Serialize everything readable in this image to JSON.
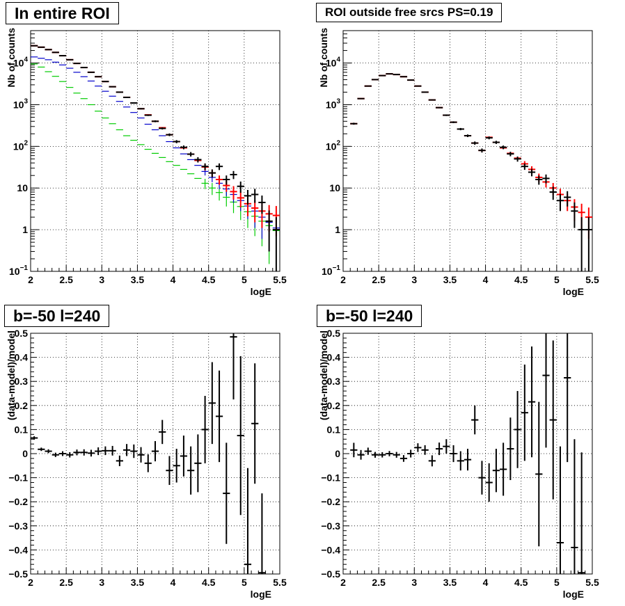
{
  "colors": {
    "data": "#000000",
    "total": "#ff0000",
    "component_a": "#0000cc",
    "component_b": "#00cc00",
    "grid": "#000000"
  },
  "chart_data": [
    {
      "type": "scatter",
      "title": "In entire ROI",
      "xlabel": "logE",
      "ylabel": "Nb of counts",
      "yscale": "log",
      "xlim": [
        2,
        5.5
      ],
      "ylim": [
        0.1,
        60000
      ],
      "xticks": [
        "2",
        "2.5",
        "3",
        "3.5",
        "4",
        "4.5",
        "5",
        "5.5"
      ],
      "yticks": [
        {
          "value": 0.1,
          "base": "10",
          "exp": "−1"
        },
        {
          "value": 1,
          "label": "1"
        },
        {
          "value": 10,
          "label": "10"
        },
        {
          "value": 100,
          "base": "10",
          "exp": "2"
        },
        {
          "value": 1000,
          "base": "10",
          "exp": "3"
        },
        {
          "value": 10000,
          "base": "10",
          "exp": "4"
        }
      ],
      "grid": true,
      "x": [
        2.05,
        2.15,
        2.25,
        2.35,
        2.45,
        2.55,
        2.65,
        2.75,
        2.85,
        2.95,
        3.05,
        3.15,
        3.25,
        3.35,
        3.45,
        3.55,
        3.65,
        3.75,
        3.85,
        3.95,
        4.05,
        4.15,
        4.25,
        4.35,
        4.45,
        4.55,
        4.65,
        4.75,
        4.85,
        4.95,
        5.05,
        5.15,
        5.25,
        5.35,
        5.45
      ],
      "series": [
        {
          "role": "data",
          "color": "#000000",
          "values": [
            26000,
            24000,
            21000,
            18000,
            15000,
            12000,
            9800,
            7800,
            6000,
            4700,
            3600,
            2700,
            2000,
            1500,
            1100,
            800,
            560,
            400,
            270,
            190,
            130,
            95,
            65,
            48,
            33,
            23,
            33,
            16,
            21,
            11,
            6.5,
            7,
            4.5,
            1.6,
            1
          ],
          "err": [
            160,
            155,
            145,
            134,
            122,
            110,
            99,
            88,
            77,
            69,
            60,
            52,
            45,
            39,
            33,
            28,
            24,
            20,
            16,
            14,
            11,
            10,
            8,
            7,
            6,
            5,
            6,
            4,
            4.6,
            3.3,
            2.5,
            2.6,
            2.1,
            1.3,
            1
          ]
        },
        {
          "role": "total",
          "color": "#ff0000",
          "values": [
            26000,
            24000,
            21000,
            18000,
            15000,
            12000,
            9800,
            7800,
            6000,
            4700,
            3600,
            2700,
            2000,
            1500,
            1100,
            800,
            570,
            400,
            280,
            190,
            130,
            92,
            65,
            46,
            32,
            23,
            16,
            11.5,
            8.2,
            5.8,
            4.2,
            3.3,
            2.8,
            2.4,
            2.2
          ],
          "err": [
            0,
            0,
            0,
            0,
            0,
            0,
            0,
            0,
            0,
            0,
            0,
            0,
            0,
            0,
            0,
            0,
            0,
            0,
            0,
            0,
            0,
            0,
            0,
            0,
            5.7,
            4.8,
            4,
            3.4,
            2.9,
            2.4,
            2.1,
            1.8,
            1.7,
            1.5,
            1.5
          ]
        },
        {
          "role": "component_a",
          "color": "#0000cc",
          "values": [
            14000,
            13000,
            12000,
            10500,
            9000,
            7500,
            6000,
            4700,
            3700,
            2800,
            2100,
            1600,
            1200,
            880,
            650,
            480,
            340,
            250,
            180,
            130,
            92,
            66,
            48,
            35,
            25,
            18,
            13,
            9.5,
            7,
            5,
            3.7,
            2.8,
            2,
            1.5,
            1.1
          ],
          "err": [
            0,
            0,
            0,
            0,
            0,
            0,
            0,
            0,
            0,
            0,
            0,
            0,
            0,
            0,
            0,
            0,
            0,
            0,
            0,
            0,
            0,
            0,
            0,
            0,
            5,
            4.2,
            3.6,
            3.1,
            2.6,
            2.2,
            1.9,
            1.7,
            1.4,
            1.2,
            1
          ]
        },
        {
          "role": "component_b",
          "color": "#00cc00",
          "values": [
            9500,
            8000,
            6200,
            4800,
            3600,
            2600,
            1900,
            1400,
            1000,
            700,
            480,
            350,
            250,
            180,
            140,
            110,
            85,
            68,
            54,
            43,
            35,
            28,
            22,
            17,
            13,
            10,
            7.8,
            6,
            4.6,
            3.6,
            2.7,
            2.1,
            1.6,
            1.25,
            0.95
          ],
          "err": [
            0,
            0,
            0,
            0,
            0,
            0,
            0,
            0,
            0,
            0,
            0,
            0,
            0,
            0,
            0,
            0,
            0,
            0,
            0,
            0,
            0,
            0,
            0,
            0,
            3.6,
            3.2,
            2.8,
            2.4,
            2.1,
            1.9,
            1.6,
            1.4,
            1.2,
            1.1,
            0.9
          ]
        }
      ]
    },
    {
      "type": "scatter",
      "title": "ROI outside free srcs PS=0.19",
      "xlabel": "logE",
      "ylabel": "Nb of counts",
      "yscale": "log",
      "xlim": [
        2,
        5.5
      ],
      "ylim": [
        0.1,
        60000
      ],
      "xticks": [
        "2",
        "2.5",
        "3",
        "3.5",
        "4",
        "4.5",
        "5",
        "5.5"
      ],
      "yticks": [
        {
          "value": 0.1,
          "base": "10",
          "exp": "−1"
        },
        {
          "value": 1,
          "label": "1"
        },
        {
          "value": 10,
          "label": "10"
        },
        {
          "value": 100,
          "base": "10",
          "exp": "2"
        },
        {
          "value": 1000,
          "base": "10",
          "exp": "3"
        },
        {
          "value": 10000,
          "base": "10",
          "exp": "4"
        }
      ],
      "grid": true,
      "x": [
        2.15,
        2.25,
        2.35,
        2.45,
        2.55,
        2.65,
        2.75,
        2.85,
        2.95,
        3.05,
        3.15,
        3.25,
        3.35,
        3.45,
        3.55,
        3.65,
        3.75,
        3.85,
        3.95,
        4.05,
        4.15,
        4.25,
        4.35,
        4.45,
        4.55,
        4.65,
        4.75,
        4.85,
        4.95,
        5.05,
        5.15,
        5.25,
        5.35,
        5.45
      ],
      "series": [
        {
          "role": "data",
          "color": "#000000",
          "values": [
            350,
            1400,
            2800,
            4000,
            5000,
            5500,
            5300,
            4700,
            3900,
            2800,
            2000,
            1300,
            850,
            560,
            380,
            260,
            180,
            120,
            80,
            160,
            125,
            95,
            66,
            50,
            33,
            24,
            16,
            17,
            8,
            5,
            6,
            2.8,
            1,
            1
          ],
          "err": [
            19,
            37,
            53,
            63,
            71,
            74,
            73,
            69,
            62,
            53,
            45,
            36,
            29,
            24,
            19,
            16,
            13,
            11,
            9,
            12.6,
            11,
            9.7,
            8.1,
            7,
            5.7,
            4.9,
            4,
            4.1,
            2.8,
            2.2,
            2.4,
            1.7,
            1,
            1
          ]
        },
        {
          "role": "total",
          "color": "#ff0000",
          "values": [
            350,
            1400,
            2800,
            4000,
            5000,
            5500,
            5300,
            4700,
            3900,
            2800,
            2000,
            1300,
            850,
            560,
            380,
            260,
            180,
            120,
            80,
            165,
            125,
            92,
            68,
            52,
            38,
            28,
            18,
            14,
            10,
            7,
            5,
            3.5,
            2.6,
            2
          ],
          "err": [
            0,
            0,
            0,
            0,
            0,
            0,
            0,
            0,
            0,
            0,
            0,
            0,
            0,
            0,
            0,
            0,
            0,
            0,
            0,
            0,
            0,
            0,
            0,
            0,
            6.2,
            5.3,
            4.2,
            3.7,
            3.2,
            2.6,
            2.2,
            1.9,
            1.6,
            1.4
          ]
        }
      ]
    },
    {
      "type": "scatter",
      "title": "b=-50 l=240",
      "xlabel": "logE",
      "ylabel": "(data-model)/model",
      "yscale": "linear",
      "xlim": [
        2,
        5.5
      ],
      "ylim": [
        -0.5,
        0.5
      ],
      "xticks": [
        "2",
        "2.5",
        "3",
        "3.5",
        "4",
        "4.5",
        "5",
        "5.5"
      ],
      "yticks": [
        "−0.5",
        "−0.4",
        "−0.3",
        "−0.2",
        "−0.1",
        "0",
        "0.1",
        "0.2",
        "0.3",
        "0.4",
        "0.5"
      ],
      "grid": true,
      "x": [
        2.05,
        2.15,
        2.25,
        2.35,
        2.45,
        2.55,
        2.65,
        2.75,
        2.85,
        2.95,
        3.05,
        3.15,
        3.25,
        3.35,
        3.45,
        3.55,
        3.65,
        3.75,
        3.85,
        3.95,
        4.05,
        4.15,
        4.25,
        4.35,
        4.45,
        4.55,
        4.65,
        4.75,
        4.85,
        4.95,
        5.05,
        5.15,
        5.25
      ],
      "series": [
        {
          "role": "data",
          "color": "#000000",
          "values": [
            0.065,
            0.018,
            0.01,
            -0.005,
            0,
            -0.005,
            0.005,
            0.005,
            0.002,
            0.01,
            0.012,
            0.012,
            -0.03,
            0.015,
            0.01,
            -0.005,
            -0.04,
            0.01,
            0.09,
            -0.07,
            -0.05,
            -0.01,
            -0.07,
            -0.04,
            0.1,
            0.21,
            0.155,
            -0.165,
            0.485,
            0.075,
            -0.46,
            0.125,
            -0.495
          ],
          "err": [
            0.007,
            0.007,
            0.008,
            0.009,
            0.01,
            0.011,
            0.012,
            0.013,
            0.014,
            0.016,
            0.018,
            0.02,
            0.022,
            0.025,
            0.028,
            0.032,
            0.037,
            0.042,
            0.05,
            0.06,
            0.07,
            0.085,
            0.1,
            0.12,
            0.14,
            0.17,
            0.19,
            0.21,
            0.26,
            0.33,
            0.4,
            0.25,
            0.33
          ]
        }
      ]
    },
    {
      "type": "scatter",
      "title": "b=-50 l=240",
      "xlabel": "logE",
      "ylabel": "(data-model)/model",
      "yscale": "linear",
      "xlim": [
        2,
        5.5
      ],
      "ylim": [
        -0.5,
        0.5
      ],
      "xticks": [
        "2",
        "2.5",
        "3",
        "3.5",
        "4",
        "4.5",
        "5",
        "5.5"
      ],
      "yticks": [
        "−0.5",
        "−0.4",
        "−0.3",
        "−0.2",
        "−0.1",
        "0",
        "0.1",
        "0.2",
        "0.3",
        "0.4",
        "0.5"
      ],
      "grid": true,
      "x": [
        2.15,
        2.25,
        2.35,
        2.45,
        2.55,
        2.65,
        2.75,
        2.85,
        2.95,
        3.05,
        3.15,
        3.25,
        3.35,
        3.45,
        3.55,
        3.65,
        3.75,
        3.85,
        3.95,
        4.05,
        4.15,
        4.25,
        4.35,
        4.45,
        4.55,
        4.65,
        4.75,
        4.85,
        4.95,
        5.05,
        5.15,
        5.25,
        5.35
      ],
      "series": [
        {
          "role": "data",
          "color": "#000000",
          "values": [
            0.015,
            -0.005,
            0.01,
            -0.005,
            -0.005,
            0,
            -0.005,
            -0.02,
            0,
            0.025,
            0.015,
            -0.03,
            0.02,
            0.03,
            0,
            -0.03,
            -0.025,
            0.14,
            -0.1,
            -0.12,
            -0.07,
            -0.065,
            0.02,
            0.1,
            0.17,
            0.215,
            -0.085,
            0.325,
            0.14,
            -0.37,
            0.315,
            -0.39,
            -0.495
          ],
          "err": [
            0.03,
            0.02,
            0.015,
            0.012,
            0.011,
            0.011,
            0.012,
            0.014,
            0.016,
            0.018,
            0.02,
            0.023,
            0.026,
            0.03,
            0.035,
            0.04,
            0.045,
            0.06,
            0.07,
            0.08,
            0.09,
            0.11,
            0.13,
            0.16,
            0.2,
            0.23,
            0.3,
            0.3,
            0.33,
            0.4,
            0.35,
            0.45,
            0.5
          ]
        }
      ]
    }
  ]
}
